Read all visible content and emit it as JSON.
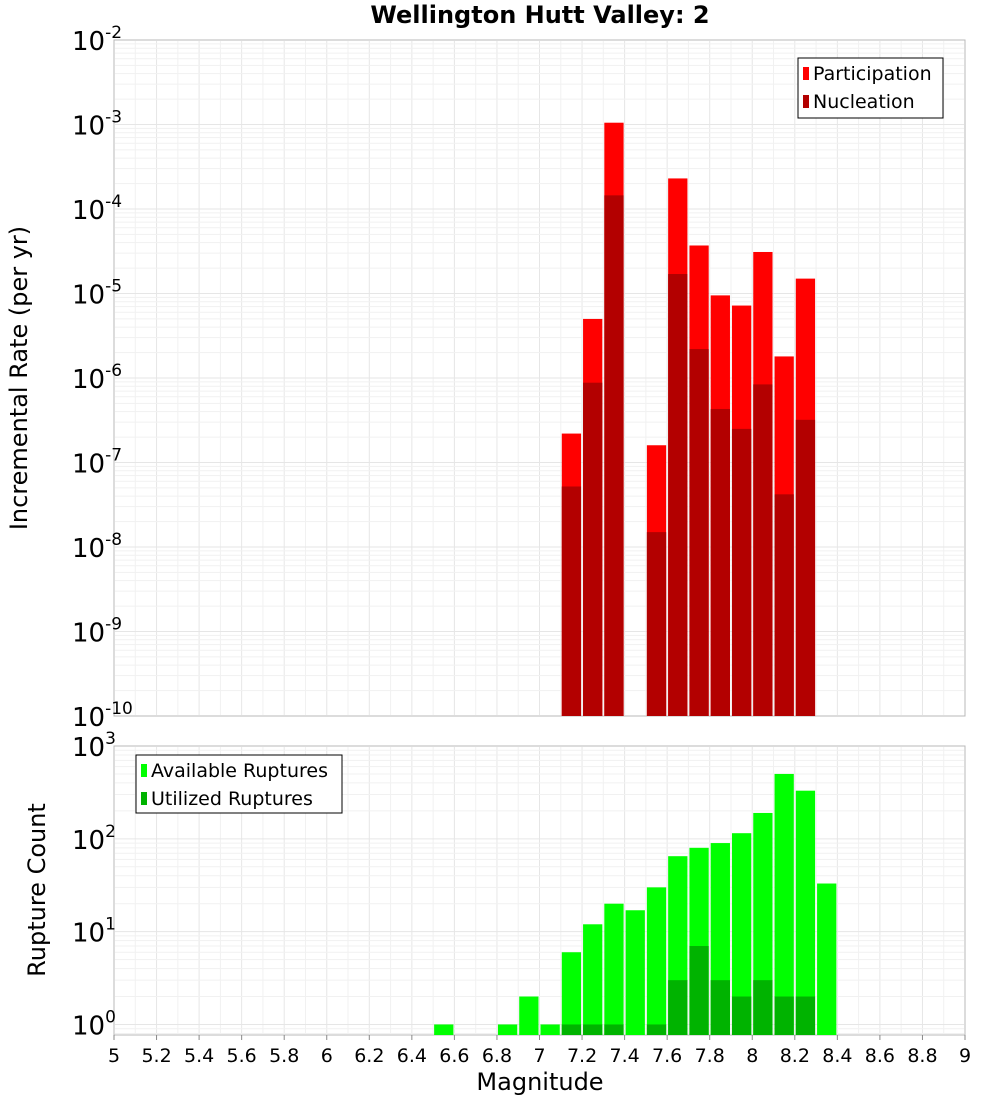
{
  "chart_data": [
    {
      "type": "bar",
      "title": "Wellington Hutt Valley: 2",
      "xlabel": "Magnitude",
      "ylabel": "Incremental Rate (per yr)",
      "yscale": "log",
      "xlim": [
        5,
        9
      ],
      "ylim": [
        1e-10,
        0.01
      ],
      "bin_width": 0.1,
      "legend_position": "top-right",
      "y_tick_labels": [
        {
          "base": "10",
          "exp": "-10"
        },
        {
          "base": "10",
          "exp": "-9"
        },
        {
          "base": "10",
          "exp": "-8"
        },
        {
          "base": "10",
          "exp": "-7"
        },
        {
          "base": "10",
          "exp": "-6"
        },
        {
          "base": "10",
          "exp": "-5"
        },
        {
          "base": "10",
          "exp": "-4"
        },
        {
          "base": "10",
          "exp": "-3"
        },
        {
          "base": "10",
          "exp": "-2"
        }
      ],
      "series": [
        {
          "name": "Participation",
          "color": "#ff0000",
          "x": [
            7.15,
            7.25,
            7.35,
            7.55,
            7.65,
            7.75,
            7.85,
            7.95,
            8.05,
            8.15,
            8.25
          ],
          "values": [
            2.2e-07,
            5e-06,
            0.00105,
            1.6e-07,
            0.00023,
            3.7e-05,
            9.5e-06,
            7.2e-06,
            3.1e-05,
            1.8e-06,
            1.5e-05
          ]
        },
        {
          "name": "Nucleation",
          "color": "#b30000",
          "x": [
            7.15,
            7.25,
            7.35,
            7.55,
            7.65,
            7.75,
            7.85,
            7.95,
            8.05,
            8.15,
            8.25
          ],
          "values": [
            5.2e-08,
            8.8e-07,
            0.000145,
            1.5e-08,
            1.7e-05,
            2.2e-06,
            4.3e-07,
            2.5e-07,
            8.4e-07,
            4.2e-08,
            3.2e-07
          ]
        }
      ]
    },
    {
      "type": "bar",
      "xlabel": "Magnitude",
      "ylabel": "Rupture Count",
      "yscale": "log",
      "xlim": [
        5,
        9
      ],
      "ylim": [
        0.77,
        1000
      ],
      "bin_width": 0.1,
      "legend_position": "top-left",
      "x_tick_labels": [
        "5",
        "5.2",
        "5.4",
        "5.6",
        "5.8",
        "6",
        "6.2",
        "6.4",
        "6.6",
        "6.8",
        "7",
        "7.2",
        "7.4",
        "7.6",
        "7.8",
        "8",
        "8.2",
        "8.4",
        "8.6",
        "8.8",
        "9"
      ],
      "y_tick_labels": [
        {
          "base": "10",
          "exp": "0"
        },
        {
          "base": "10",
          "exp": "1"
        },
        {
          "base": "10",
          "exp": "2"
        },
        {
          "base": "10",
          "exp": "3"
        }
      ],
      "series": [
        {
          "name": "Available Ruptures",
          "color": "#00ff00",
          "x": [
            6.55,
            6.85,
            6.95,
            7.05,
            7.15,
            7.25,
            7.35,
            7.45,
            7.55,
            7.65,
            7.75,
            7.85,
            7.95,
            8.05,
            8.15,
            8.25,
            8.35
          ],
          "values": [
            1,
            1,
            2,
            1,
            6,
            12,
            20,
            17,
            30,
            65,
            80,
            90,
            115,
            190,
            500,
            330,
            33
          ]
        },
        {
          "name": "Utilized Ruptures",
          "color": "#00b300",
          "x": [
            7.15,
            7.25,
            7.35,
            7.55,
            7.65,
            7.75,
            7.85,
            7.95,
            8.05,
            8.15,
            8.25
          ],
          "values": [
            1,
            1,
            1,
            1,
            3,
            7,
            3,
            2,
            3,
            2,
            2
          ]
        }
      ]
    }
  ]
}
